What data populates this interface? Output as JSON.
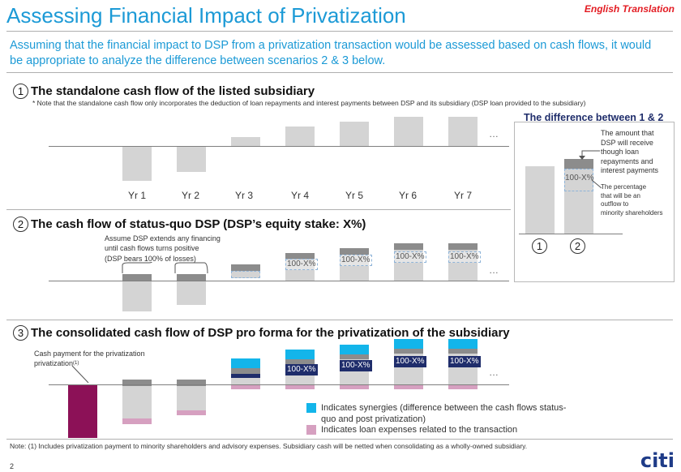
{
  "header": {
    "title": "Assessing Financial Impact of Privatization",
    "tag": "English Translation",
    "intro": "Assuming that the financial impact to DSP from a privatization transaction would be assessed based on cash flows, it would be appropriate to analyze the difference between scenarios 2 & 3 below."
  },
  "section1": {
    "number": "1",
    "title": "The standalone cash flow of the listed  subsidiary",
    "note": "* Note that the standalone cash flow only incorporates the deduction of loan repayments and interest payments between DSP and its subsidiary (DSP loan provided to the subsidiary)",
    "years": [
      "Yr 1",
      "Yr 2",
      "Yr 3",
      "Yr 4",
      "Yr 5",
      "Yr 6",
      "Yr 7"
    ],
    "dots": "…"
  },
  "section2": {
    "number": "2",
    "title": "The cash flow of status-quo DSP (DSP’s equity stake: X%)",
    "callout_line1": "Assume DSP extends any financing",
    "callout_line2": "until cash flows turns positive",
    "callout_line3": "(DSP bears 100% of losses)",
    "minority_label": "100-X%",
    "dots": "…"
  },
  "section3": {
    "number": "3",
    "title": "The consolidated cash flow of DSP  pro forma for the privatization  of the subsidiary",
    "payment_label": "Cash payment for the privatization",
    "payment_sup": "(1)",
    "minority_label": "100-X%",
    "dots": "…"
  },
  "difference": {
    "title": "The difference between 1 & 2",
    "amount_line1": "The amount that",
    "amount_line2": "DSP will receive",
    "amount_line3": "though loan",
    "amount_line4": "repayments and",
    "amount_line5": "interest payments",
    "pct_line1": "The percentage",
    "pct_line2": "that will be an",
    "pct_line3": "outflow to",
    "pct_line4": "minority shareholders",
    "box_label": "100-X%",
    "scenario_a": "1",
    "scenario_b": "2"
  },
  "legend": {
    "synergies_line1": "Indicates synergies (difference between the cash flows status-",
    "synergies_line2": "quo and post privatization)",
    "loan": "Indicates loan expenses related to the transaction",
    "color_synergies": "#13b5ea",
    "color_loan": "#d6a0c0"
  },
  "footer": {
    "note": "Note: (1) Includes privatization payment to minority shareholders and advisory expenses. Subsidiary cash will be netted when consolidating as a wholly-owned  subsidiary.",
    "page": "2",
    "logo": "citi"
  }
}
